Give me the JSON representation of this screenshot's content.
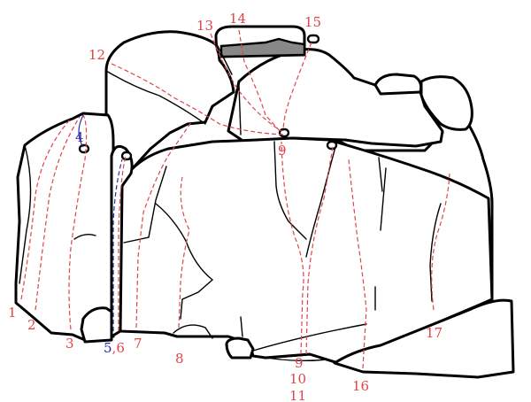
{
  "colors": {
    "outline": "#000000",
    "route_red": "#e0434a",
    "route_blue": "#2b2ba8",
    "shaded_ledge": "#888888",
    "background": "#ffffff"
  },
  "labels": [
    {
      "id": "r1",
      "text": "1",
      "color": "red"
    },
    {
      "id": "r2",
      "text": "2",
      "color": "red"
    },
    {
      "id": "r3",
      "text": "3",
      "color": "red"
    },
    {
      "id": "r4",
      "text": "4",
      "color": "blue"
    },
    {
      "id": "r56",
      "text": "5",
      "text2": ",6",
      "color": "blue",
      "color2": "red"
    },
    {
      "id": "r7",
      "text": "7",
      "color": "red"
    },
    {
      "id": "r8",
      "text": "8",
      "color": "red"
    },
    {
      "id": "r9a",
      "text": "9",
      "color": "red"
    },
    {
      "id": "r9b",
      "text": "9",
      "color": "red"
    },
    {
      "id": "r10",
      "text": "10",
      "color": "red"
    },
    {
      "id": "r11",
      "text": "11",
      "color": "red"
    },
    {
      "id": "r12",
      "text": "12",
      "color": "red"
    },
    {
      "id": "r13",
      "text": "13",
      "color": "red"
    },
    {
      "id": "r14",
      "text": "14",
      "color": "red"
    },
    {
      "id": "r15",
      "text": "15",
      "color": "red"
    },
    {
      "id": "r16",
      "text": "16",
      "color": "red"
    },
    {
      "id": "r17",
      "text": "17",
      "color": "red"
    }
  ]
}
